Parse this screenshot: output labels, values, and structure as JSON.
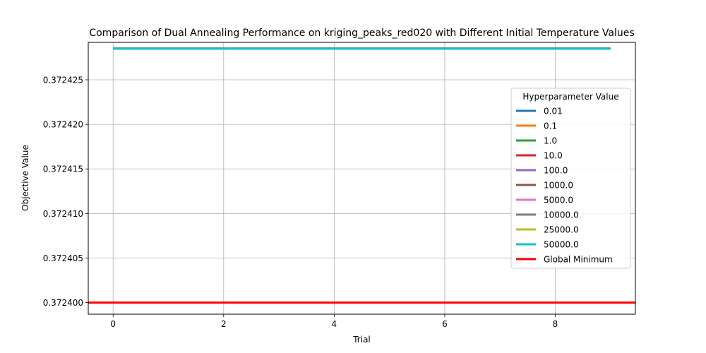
{
  "chart_data": {
    "type": "line",
    "title": "Comparison of Dual Annealing Performance on kriging_peaks_red020 with Different Initial Temperature Values",
    "xlabel": "Trial",
    "ylabel": "Objective Value",
    "xlim": [
      -0.45,
      9.45
    ],
    "ylim": [
      0.3723987,
      0.3724292
    ],
    "xticks": [
      0,
      2,
      4,
      6,
      8
    ],
    "yticks": [
      0.3724,
      0.372405,
      0.37241,
      0.372415,
      0.37242,
      0.372425
    ],
    "ytick_labels": [
      "0.372400",
      "0.372405",
      "0.372410",
      "0.372415",
      "0.372420",
      "0.372425"
    ],
    "grid": true,
    "legend": {
      "title": "Hyperparameter Value",
      "placement": "right"
    },
    "x": [
      0,
      1,
      2,
      3,
      4,
      5,
      6,
      7,
      8,
      9
    ],
    "series": [
      {
        "name": "0.01",
        "color": "#1f77b4",
        "values": [
          0.3724285,
          0.3724285,
          0.3724285,
          0.3724285,
          0.3724285,
          0.3724285,
          0.3724285,
          0.3724285,
          0.3724285,
          0.3724285
        ]
      },
      {
        "name": "0.1",
        "color": "#ff7f0e",
        "values": [
          0.3724285,
          0.3724285,
          0.3724285,
          0.3724285,
          0.3724285,
          0.3724285,
          0.3724285,
          0.3724285,
          0.3724285,
          0.3724285
        ]
      },
      {
        "name": "1.0",
        "color": "#2ca02c",
        "values": [
          0.3724285,
          0.3724285,
          0.3724285,
          0.3724285,
          0.3724285,
          0.3724285,
          0.3724285,
          0.3724285,
          0.3724285,
          0.3724285
        ]
      },
      {
        "name": "10.0",
        "color": "#d62728",
        "values": [
          0.3724285,
          0.3724285,
          0.3724285,
          0.3724285,
          0.3724285,
          0.3724285,
          0.3724285,
          0.3724285,
          0.3724285,
          0.3724285
        ]
      },
      {
        "name": "100.0",
        "color": "#9467bd",
        "values": [
          0.3724285,
          0.3724285,
          0.3724285,
          0.3724285,
          0.3724285,
          0.3724285,
          0.3724285,
          0.3724285,
          0.3724285,
          0.3724285
        ]
      },
      {
        "name": "1000.0",
        "color": "#8c564b",
        "values": [
          0.3724285,
          0.3724285,
          0.3724285,
          0.3724285,
          0.3724285,
          0.3724285,
          0.3724285,
          0.3724285,
          0.3724285,
          0.3724285
        ]
      },
      {
        "name": "5000.0",
        "color": "#e377c2",
        "values": [
          0.3724285,
          0.3724285,
          0.3724285,
          0.3724285,
          0.3724285,
          0.3724285,
          0.3724285,
          0.3724285,
          0.3724285,
          0.3724285
        ]
      },
      {
        "name": "10000.0",
        "color": "#7f7f7f",
        "values": [
          0.3724285,
          0.3724285,
          0.3724285,
          0.3724285,
          0.3724285,
          0.3724285,
          0.3724285,
          0.3724285,
          0.3724285,
          0.3724285
        ]
      },
      {
        "name": "25000.0",
        "color": "#bcbd22",
        "values": [
          0.3724285,
          0.3724285,
          0.3724285,
          0.3724285,
          0.3724285,
          0.3724285,
          0.3724285,
          0.3724285,
          0.3724285,
          0.3724285
        ]
      },
      {
        "name": "50000.0",
        "color": "#17becf",
        "values": [
          0.3724285,
          0.3724285,
          0.3724285,
          0.3724285,
          0.3724285,
          0.3724285,
          0.3724285,
          0.3724285,
          0.3724285,
          0.3724285
        ]
      }
    ],
    "reference_line": {
      "name": "Global Minimum",
      "color": "#ff0000",
      "y": 0.3724
    }
  }
}
